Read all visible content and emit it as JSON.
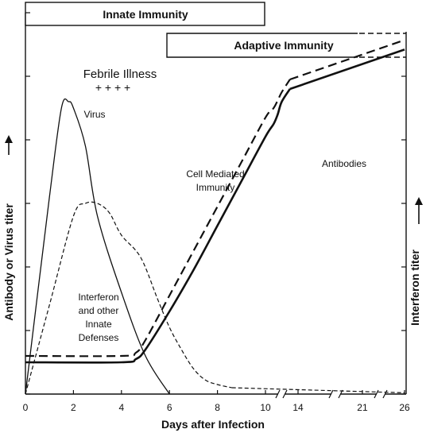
{
  "chart_data": {
    "type": "line",
    "title": "",
    "xlabel": "Days after Infection",
    "ylabel_left": "Antibody or Virus titer",
    "ylabel_right": "Interferon titer",
    "x_ticks": [
      "0",
      "2",
      "4",
      "6",
      "8",
      "10",
      "14",
      "21",
      "26"
    ],
    "x_tick_index": [
      0,
      1,
      2,
      3,
      4,
      5,
      6,
      7,
      8
    ],
    "y_range": [
      0,
      6
    ],
    "phases": [
      {
        "label": "Innate Immunity",
        "from_day": 0,
        "to_day": 10
      },
      {
        "label": "Adaptive Immunity",
        "from_day": 6,
        "to_day": 26,
        "dashed_after_day": 21
      }
    ],
    "annotations": {
      "febrile_illness": "Febrile Illness",
      "febrile_marks": "+ + + +",
      "virus": "Virus",
      "cmi_line1": "Cell Mediated",
      "cmi_line2": "Immunity",
      "antibodies": "Antibodies",
      "interferon_line1": "Interferon",
      "interferon_line2": "and other",
      "interferon_line3": "Innate",
      "interferon_line4": "Defenses"
    },
    "series": [
      {
        "name": "Virus",
        "style": "thin-solid",
        "x": [
          0,
          1,
          1.5,
          1.8,
          2,
          2.5,
          3,
          4,
          5,
          6
        ],
        "y": [
          0,
          3.1,
          4.5,
          4.6,
          4.5,
          3.9,
          2.8,
          1.6,
          0.6,
          0
        ]
      },
      {
        "name": "Interferon",
        "style": "thin-dashed",
        "x": [
          0,
          1,
          2,
          2.5,
          3,
          3.5,
          4,
          4.8,
          5.5,
          6,
          6.5,
          7,
          7.5,
          8,
          8.6
        ],
        "y": [
          0,
          1.4,
          2.8,
          3.0,
          3.0,
          2.85,
          2.5,
          2.15,
          1.5,
          1.05,
          0.7,
          0.4,
          0.22,
          0.15,
          0.1
        ]
      },
      {
        "name": "Cell Mediated Immunity",
        "style": "thick-dashed",
        "x": [
          0,
          4,
          4.6,
          5,
          6,
          7,
          8,
          9,
          10,
          11,
          11.5,
          12,
          13
        ],
        "y": [
          0.6,
          0.6,
          0.65,
          0.85,
          1.55,
          2.25,
          2.95,
          3.65,
          4.35,
          4.5,
          4.62,
          4.75,
          4.95
        ]
      },
      {
        "name": "Antibodies",
        "style": "thick-solid",
        "x": [
          0,
          4,
          4.6,
          5,
          6,
          7,
          8,
          9,
          10,
          11,
          11.5,
          12,
          13
        ],
        "y": [
          0.5,
          0.5,
          0.55,
          0.7,
          1.3,
          1.95,
          2.65,
          3.35,
          4.05,
          4.25,
          4.4,
          4.6,
          4.8
        ]
      }
    ]
  }
}
